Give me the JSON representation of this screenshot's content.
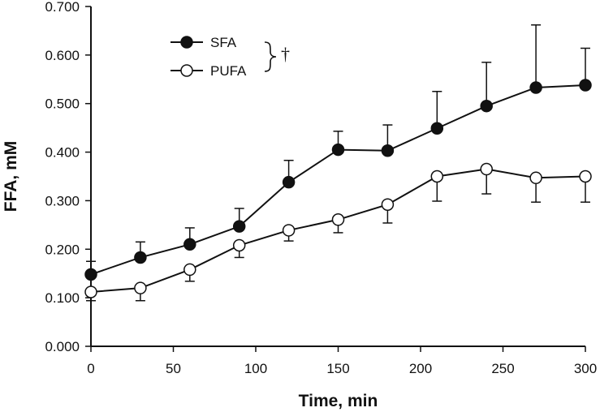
{
  "chart_data": {
    "type": "line",
    "title": "",
    "xlabel": "Time, min",
    "ylabel": "FFA, mM",
    "xlim": [
      0,
      300
    ],
    "ylim": [
      0,
      0.7
    ],
    "x_ticks": [
      "0",
      "50",
      "100",
      "150",
      "200",
      "250",
      "300"
    ],
    "y_ticks": [
      "0.000",
      "0.100",
      "0.200",
      "0.300",
      "0.400",
      "0.500",
      "0.600",
      "0.700"
    ],
    "x_tick_values": [
      0,
      50,
      100,
      150,
      200,
      250,
      300
    ],
    "y_tick_values": [
      0,
      0.1,
      0.2,
      0.3,
      0.4,
      0.5,
      0.6,
      0.7
    ],
    "x": [
      0,
      30,
      60,
      90,
      120,
      150,
      180,
      210,
      240,
      270,
      300
    ],
    "series": [
      {
        "name": "SFA",
        "marker": "filled-circle",
        "color": "#111111",
        "values": [
          0.148,
          0.183,
          0.21,
          0.247,
          0.338,
          0.405,
          0.403,
          0.449,
          0.495,
          0.533,
          0.538
        ],
        "error": [
          0.027,
          0.032,
          0.034,
          0.037,
          0.045,
          0.038,
          0.053,
          0.076,
          0.09,
          0.129,
          0.076
        ],
        "error_direction": "up"
      },
      {
        "name": "PUFA",
        "marker": "open-circle",
        "color": "#111111",
        "values": [
          0.112,
          0.12,
          0.158,
          0.208,
          0.239,
          0.261,
          0.292,
          0.35,
          0.365,
          0.347,
          0.35
        ],
        "error": [
          0.018,
          0.026,
          0.024,
          0.025,
          0.022,
          0.027,
          0.038,
          0.051,
          0.051,
          0.05,
          0.053
        ],
        "error_direction": "down"
      }
    ],
    "legend": {
      "position": "top-left",
      "annotation": "†"
    },
    "grid": false
  }
}
